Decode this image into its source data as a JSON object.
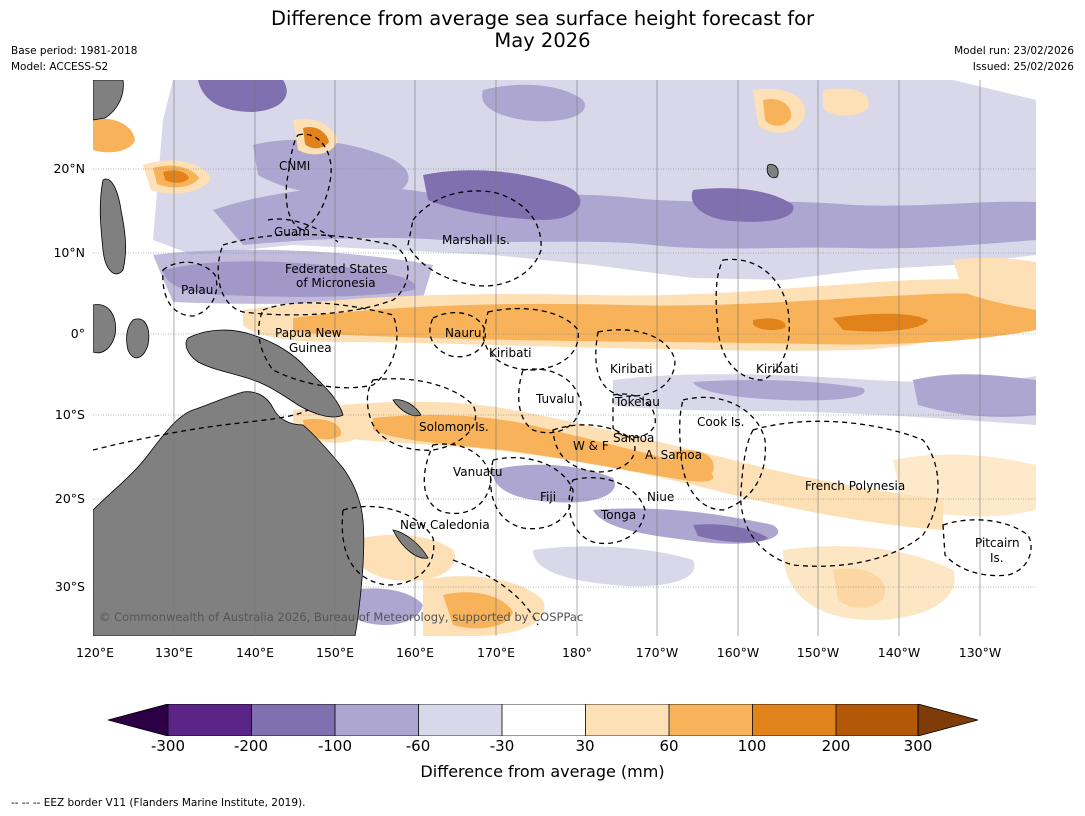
{
  "title_line1": "Difference from average sea surface height forecast for",
  "title_line2": "May 2026",
  "meta_left": {
    "base_period": "Base period: 1981-2018",
    "model": "Model: ACCESS-S2"
  },
  "meta_right": {
    "model_run": "Model run: 23/02/2026",
    "issued": "Issued: 25/02/2026"
  },
  "lat_ticks": [
    "20°N",
    "10°N",
    "0°",
    "10°S",
    "20°S",
    "30°S"
  ],
  "lon_ticks": [
    "120°E",
    "130°E",
    "140°E",
    "150°E",
    "160°E",
    "170°E",
    "180°",
    "170°W",
    "160°W",
    "150°W",
    "140°W",
    "130°W"
  ],
  "regions": {
    "cnmi": "CNMI",
    "guam": "Guam",
    "marshall": "Marshall Is.",
    "fsm_line1": "Federated States",
    "fsm_line2": "of Micronesia",
    "palau": "Palau",
    "png_line1": "Papua New",
    "png_line2": "Guinea",
    "nauru": "Nauru",
    "kiribati_w": "Kiribati",
    "kiribati_c": "Kiribati",
    "kiribati_e": "Kiribati",
    "tuvalu": "Tuvalu",
    "tokelau": "Tokelau",
    "cook": "Cook Is.",
    "solomon": "Solomon Is.",
    "wf": "W & F",
    "samoa": "Samoa",
    "asamoa": "A. Samoa",
    "vanuatu": "Vanuatu",
    "fiji": "Fiji",
    "niue": "Niue",
    "tonga": "Tonga",
    "newcal": "New Caledonia",
    "fp": "French Polynesia",
    "pitcairn_line1": "Pitcairn",
    "pitcairn_line2": "Is."
  },
  "credit": "© Commonwealth of Australia 2026, Bureau of Meteorology, supported by COSPPac",
  "colorbar": {
    "ticks": [
      "-300",
      "-200",
      "-100",
      "-60",
      "-30",
      "30",
      "60",
      "100",
      "200",
      "300"
    ],
    "colors": [
      "#5a2487",
      "#8070b0",
      "#ada6d0",
      "#d8d8ea",
      "#ffffff",
      "#fde0b5",
      "#f8b35a",
      "#e1821b",
      "#b35807"
    ],
    "low_extend": "#2d0046",
    "high_extend": "#7f3b08",
    "label": "Difference from average (mm)"
  },
  "footnote": "--  --  -- EEZ border V11 (Flanders Marine Institute, 2019).",
  "land_color": "#808080"
}
